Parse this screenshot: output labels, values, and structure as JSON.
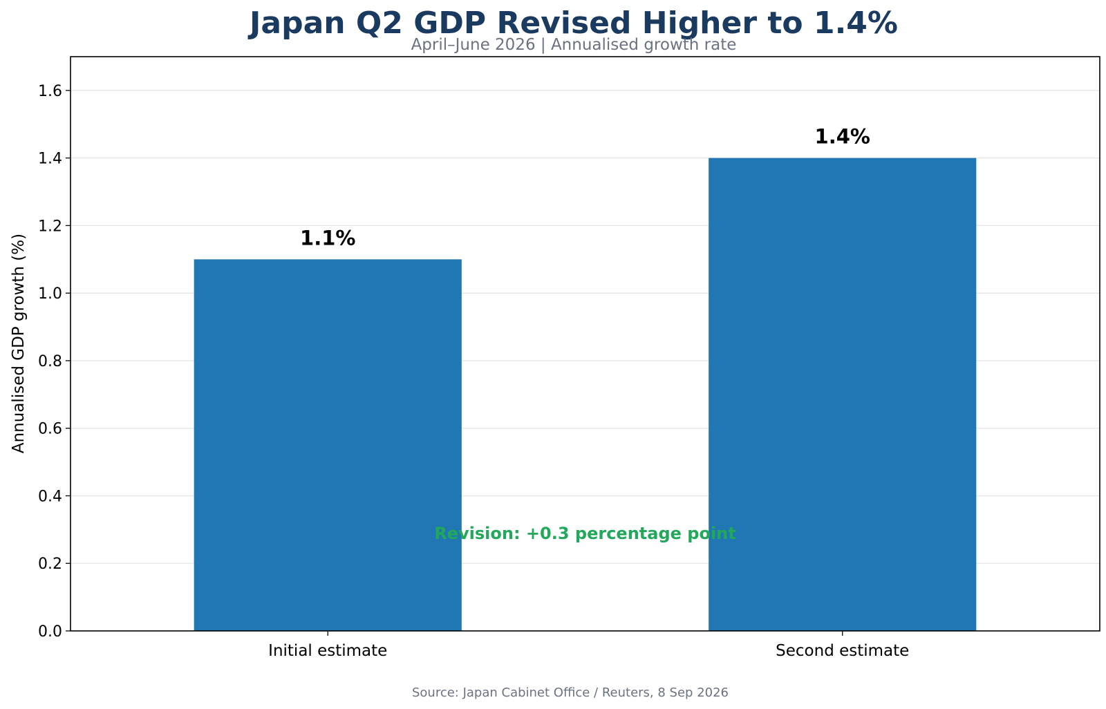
{
  "chart_data": {
    "type": "bar",
    "title": "Japan Q2 GDP Revised Higher to 1.4%",
    "subtitle": "April–June 2026 | Annualised growth rate",
    "xlabel": "",
    "ylabel": "Annualised GDP growth (%)",
    "categories": [
      "Initial estimate",
      "Second estimate"
    ],
    "values": [
      1.1,
      1.4
    ],
    "data_labels": [
      "1.1%",
      "1.4%"
    ],
    "ylim": [
      0,
      1.7
    ],
    "yticks": [
      0.0,
      0.2,
      0.4,
      0.6,
      0.8,
      1.0,
      1.2,
      1.4,
      1.6
    ],
    "ytick_labels": [
      "0.0",
      "0.2",
      "0.4",
      "0.6",
      "0.8",
      "1.0",
      "1.2",
      "1.4",
      "1.6"
    ],
    "grid": "y-axis, light",
    "legend": "none",
    "bar_color": "#2077b4",
    "annotation": {
      "text": "Revision: +0.3 percentage point",
      "y": 0.29,
      "color": "#22a85a"
    },
    "source": "Source: Japan Cabinet Office / Reuters, 8 Sep 2026"
  }
}
